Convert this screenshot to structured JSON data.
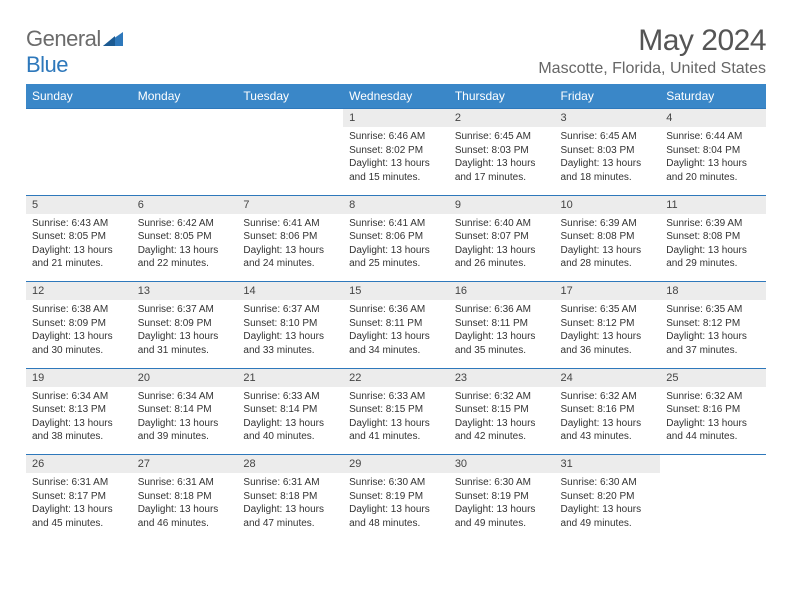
{
  "brand": {
    "part1": "General",
    "part2": "Blue"
  },
  "title": "May 2024",
  "location": "Mascotte, Florida, United States",
  "colors": {
    "header_bg": "#3a87c8",
    "border": "#2e78bb",
    "daynum_bg": "#ececec",
    "text": "#333333",
    "title_text": "#555555"
  },
  "weekdays": [
    "Sunday",
    "Monday",
    "Tuesday",
    "Wednesday",
    "Thursday",
    "Friday",
    "Saturday"
  ],
  "weeks": [
    [
      null,
      null,
      null,
      {
        "n": "1",
        "sr": "6:46 AM",
        "ss": "8:02 PM",
        "dl": "13 hours and 15 minutes."
      },
      {
        "n": "2",
        "sr": "6:45 AM",
        "ss": "8:03 PM",
        "dl": "13 hours and 17 minutes."
      },
      {
        "n": "3",
        "sr": "6:45 AM",
        "ss": "8:03 PM",
        "dl": "13 hours and 18 minutes."
      },
      {
        "n": "4",
        "sr": "6:44 AM",
        "ss": "8:04 PM",
        "dl": "13 hours and 20 minutes."
      }
    ],
    [
      {
        "n": "5",
        "sr": "6:43 AM",
        "ss": "8:05 PM",
        "dl": "13 hours and 21 minutes."
      },
      {
        "n": "6",
        "sr": "6:42 AM",
        "ss": "8:05 PM",
        "dl": "13 hours and 22 minutes."
      },
      {
        "n": "7",
        "sr": "6:41 AM",
        "ss": "8:06 PM",
        "dl": "13 hours and 24 minutes."
      },
      {
        "n": "8",
        "sr": "6:41 AM",
        "ss": "8:06 PM",
        "dl": "13 hours and 25 minutes."
      },
      {
        "n": "9",
        "sr": "6:40 AM",
        "ss": "8:07 PM",
        "dl": "13 hours and 26 minutes."
      },
      {
        "n": "10",
        "sr": "6:39 AM",
        "ss": "8:08 PM",
        "dl": "13 hours and 28 minutes."
      },
      {
        "n": "11",
        "sr": "6:39 AM",
        "ss": "8:08 PM",
        "dl": "13 hours and 29 minutes."
      }
    ],
    [
      {
        "n": "12",
        "sr": "6:38 AM",
        "ss": "8:09 PM",
        "dl": "13 hours and 30 minutes."
      },
      {
        "n": "13",
        "sr": "6:37 AM",
        "ss": "8:09 PM",
        "dl": "13 hours and 31 minutes."
      },
      {
        "n": "14",
        "sr": "6:37 AM",
        "ss": "8:10 PM",
        "dl": "13 hours and 33 minutes."
      },
      {
        "n": "15",
        "sr": "6:36 AM",
        "ss": "8:11 PM",
        "dl": "13 hours and 34 minutes."
      },
      {
        "n": "16",
        "sr": "6:36 AM",
        "ss": "8:11 PM",
        "dl": "13 hours and 35 minutes."
      },
      {
        "n": "17",
        "sr": "6:35 AM",
        "ss": "8:12 PM",
        "dl": "13 hours and 36 minutes."
      },
      {
        "n": "18",
        "sr": "6:35 AM",
        "ss": "8:12 PM",
        "dl": "13 hours and 37 minutes."
      }
    ],
    [
      {
        "n": "19",
        "sr": "6:34 AM",
        "ss": "8:13 PM",
        "dl": "13 hours and 38 minutes."
      },
      {
        "n": "20",
        "sr": "6:34 AM",
        "ss": "8:14 PM",
        "dl": "13 hours and 39 minutes."
      },
      {
        "n": "21",
        "sr": "6:33 AM",
        "ss": "8:14 PM",
        "dl": "13 hours and 40 minutes."
      },
      {
        "n": "22",
        "sr": "6:33 AM",
        "ss": "8:15 PM",
        "dl": "13 hours and 41 minutes."
      },
      {
        "n": "23",
        "sr": "6:32 AM",
        "ss": "8:15 PM",
        "dl": "13 hours and 42 minutes."
      },
      {
        "n": "24",
        "sr": "6:32 AM",
        "ss": "8:16 PM",
        "dl": "13 hours and 43 minutes."
      },
      {
        "n": "25",
        "sr": "6:32 AM",
        "ss": "8:16 PM",
        "dl": "13 hours and 44 minutes."
      }
    ],
    [
      {
        "n": "26",
        "sr": "6:31 AM",
        "ss": "8:17 PM",
        "dl": "13 hours and 45 minutes."
      },
      {
        "n": "27",
        "sr": "6:31 AM",
        "ss": "8:18 PM",
        "dl": "13 hours and 46 minutes."
      },
      {
        "n": "28",
        "sr": "6:31 AM",
        "ss": "8:18 PM",
        "dl": "13 hours and 47 minutes."
      },
      {
        "n": "29",
        "sr": "6:30 AM",
        "ss": "8:19 PM",
        "dl": "13 hours and 48 minutes."
      },
      {
        "n": "30",
        "sr": "6:30 AM",
        "ss": "8:19 PM",
        "dl": "13 hours and 49 minutes."
      },
      {
        "n": "31",
        "sr": "6:30 AM",
        "ss": "8:20 PM",
        "dl": "13 hours and 49 minutes."
      },
      null
    ]
  ],
  "labels": {
    "sunrise": "Sunrise: ",
    "sunset": "Sunset: ",
    "daylight": "Daylight: "
  }
}
